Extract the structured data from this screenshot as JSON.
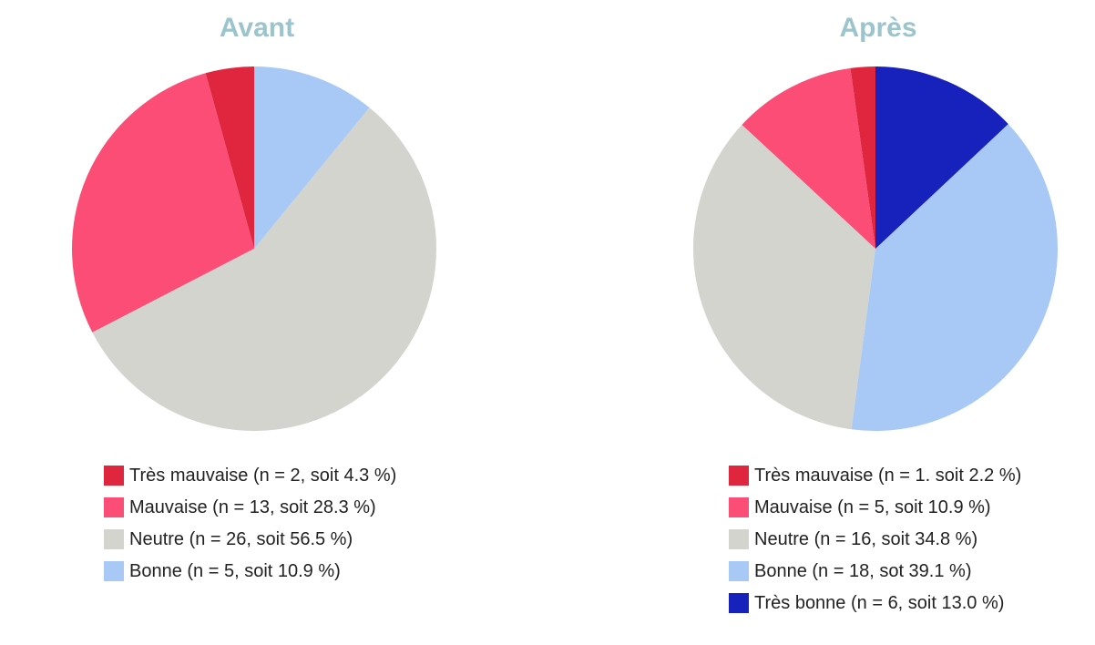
{
  "colors": {
    "tres_mauvaise": "#e0263e",
    "mauvaise": "#fb4d76",
    "neutre": "#d3d4ce",
    "bonne": "#a8c8f5",
    "tres_bonne": "#1721bb",
    "title": "#9cc4cc"
  },
  "chart_data": [
    {
      "type": "pie",
      "title": "Avant",
      "start_angle_deg": 0,
      "direction": "counterclockwise",
      "categories": [
        "Très mauvaise",
        "Mauvaise",
        "Neutre",
        "Bonne"
      ],
      "counts": [
        2,
        13,
        26,
        5
      ],
      "values": [
        4.3,
        28.3,
        56.5,
        10.9
      ],
      "colors": [
        "#e0263e",
        "#fb4d76",
        "#d3d4ce",
        "#a8c8f5"
      ],
      "legend": [
        "Très mauvaise (n = 2, soit 4.3 %)",
        "Mauvaise (n = 13, soit 28.3 %)",
        "Neutre (n = 26, soit 56.5 %)",
        "Bonne (n = 5, soit 10.9 %)"
      ],
      "legend_position": "bottom"
    },
    {
      "type": "pie",
      "title": "Après",
      "start_angle_deg": 0,
      "direction": "counterclockwise",
      "categories": [
        "Très mauvaise",
        "Mauvaise",
        "Neutre",
        "Bonne",
        "Très bonne"
      ],
      "counts": [
        1,
        5,
        16,
        18,
        6
      ],
      "values": [
        2.2,
        10.9,
        34.8,
        39.1,
        13.0
      ],
      "colors": [
        "#e0263e",
        "#fb4d76",
        "#d3d4ce",
        "#a8c8f5",
        "#1721bb"
      ],
      "legend": [
        "Très mauvaise (n = 1. soit 2.2 %)",
        "Mauvaise (n = 5, soit 10.9 %)",
        "Neutre (n = 16, soit 34.8 %)",
        "Bonne (n = 18, sot 39.1 %)",
        "Très bonne (n = 6, soit 13.0  %)"
      ],
      "legend_position": "bottom"
    }
  ]
}
